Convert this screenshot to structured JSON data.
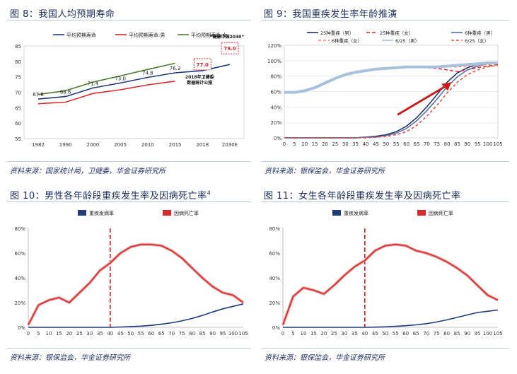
{
  "fig8": {
    "title": "图 8：我国人均预期寿命",
    "source": "资料来源：国家统计局，卫健委，华金证券研究所",
    "chart_data": {
      "type": "line",
      "categories": [
        "1982",
        "1990",
        "2000",
        "2005",
        "2010",
        "2015",
        "2018",
        "2030E"
      ],
      "ylim": [
        55,
        85
      ],
      "yticks": [
        "55",
        "60",
        "65",
        "70",
        "75",
        "80",
        "85"
      ],
      "series": [
        {
          "name": "平均预期寿命",
          "color": "#1f3a7a",
          "values": [
            67.8,
            68.6,
            71.4,
            73.0,
            74.8,
            76.3,
            77.0,
            79.0
          ]
        },
        {
          "name": "平均预期寿命:男",
          "color": "#d42a2a",
          "values": [
            66.3,
            66.8,
            69.6,
            70.8,
            72.4,
            73.6,
            null,
            null
          ]
        },
        {
          "name": "平均预期寿命:女",
          "color": "#4e7a2e",
          "values": [
            69.3,
            70.5,
            73.3,
            75.3,
            77.4,
            79.4,
            null,
            null
          ]
        }
      ],
      "labels": [
        {
          "idx": 0,
          "text": "67.8"
        },
        {
          "idx": 1,
          "text": "68.6"
        },
        {
          "idx": 2,
          "text": "71.4"
        },
        {
          "idx": 3,
          "text": "73.0"
        },
        {
          "idx": 4,
          "text": "74.8"
        },
        {
          "idx": 5,
          "text": "76.3"
        }
      ],
      "boxed_labels": [
        {
          "idx": 6,
          "value": 77.0,
          "text": "77.0"
        },
        {
          "idx": 7,
          "value": 79.0,
          "text": "79.0"
        }
      ],
      "annotations": [
        "“健康中国2030”",
        "2018年卫健委\n数据统计公报"
      ]
    }
  },
  "fig9": {
    "title": "图 9：我国重疾发生率年龄推演",
    "source": "资料来源：银保监会，华金证券研究所",
    "chart_data": {
      "type": "line",
      "categories": [
        "0",
        "5",
        "10",
        "15",
        "20",
        "25",
        "30",
        "35",
        "40",
        "45",
        "50",
        "55",
        "60",
        "65",
        "70",
        "75",
        "80",
        "85",
        "90",
        "95",
        "100",
        "105"
      ],
      "ylim": [
        0,
        120
      ],
      "yticks": [
        "0%",
        "20%",
        "40%",
        "60%",
        "80%",
        "100%",
        "120%"
      ],
      "series": [
        {
          "name": "25种重疾（男）",
          "color": "#1a2b5e",
          "dash": "",
          "values": [
            0,
            0,
            0,
            0,
            0,
            0,
            0,
            0,
            1,
            2,
            4,
            8,
            15,
            26,
            40,
            56,
            72,
            84,
            91,
            95,
            97,
            98
          ]
        },
        {
          "name": "25种重疾（女）",
          "color": "#d42a2a",
          "dash": "5,3",
          "values": [
            58,
            58,
            60,
            65,
            70,
            76,
            82,
            85,
            87,
            89,
            90,
            91,
            92,
            92,
            91,
            90,
            88,
            86,
            88,
            91,
            93,
            95
          ]
        },
        {
          "name": "6种重疾（男）",
          "color": "#4b6fa8",
          "dash": "",
          "values": [
            0,
            0,
            0,
            0,
            0,
            0,
            0,
            0,
            1,
            1,
            3,
            6,
            12,
            22,
            35,
            50,
            66,
            79,
            88,
            93,
            96,
            98
          ]
        },
        {
          "name": "6种重疾（女）",
          "color": "#ee7a5a",
          "dash": "4,3",
          "values": [
            59,
            59,
            61,
            66,
            71,
            77,
            82,
            85,
            87,
            89,
            90,
            91,
            92,
            92,
            92,
            92,
            92,
            92,
            93,
            94,
            95,
            96
          ]
        },
        {
          "name": "6/25（男）",
          "color": "#a9c0dd",
          "dash": "",
          "values": [
            59,
            59,
            61,
            65,
            71,
            77,
            82,
            85,
            87,
            89,
            90,
            91,
            92,
            92,
            92,
            92,
            93,
            94,
            95,
            96,
            97,
            97
          ]
        },
        {
          "name": "6/25（女）",
          "color": "#e84a3a",
          "dash": "4,3",
          "values": [
            0,
            0,
            0,
            0,
            0,
            0,
            0,
            0,
            0,
            1,
            2,
            4,
            8,
            16,
            28,
            42,
            58,
            72,
            82,
            88,
            92,
            94
          ]
        }
      ]
    }
  },
  "fig10": {
    "title": "图 10：男性各年龄段重疾发生率及因病死亡率",
    "title_sup": "4",
    "source": "资料来源：银保监会，华金证券研究所",
    "chart_data": {
      "type": "line",
      "categories": [
        "0",
        "5",
        "10",
        "15",
        "20",
        "25",
        "30",
        "35",
        "40",
        "45",
        "50",
        "55",
        "60",
        "65",
        "70",
        "75",
        "80",
        "85",
        "90",
        "95",
        "100",
        "105"
      ],
      "ylim": [
        0,
        80
      ],
      "yticks": [
        "0%",
        "20%",
        "40%",
        "60%",
        "80%"
      ],
      "vline_at": 40,
      "series": [
        {
          "name": "重疾发病率",
          "color": "#1f3a7a",
          "values": [
            0,
            0,
            0,
            0,
            0,
            0,
            0,
            0,
            0,
            0.3,
            0.6,
            1,
            1.6,
            2.5,
            3.7,
            5.2,
            7.2,
            9.6,
            12.4,
            15,
            17,
            19
          ]
        },
        {
          "name": "因病死亡率",
          "color": "#d42a2a",
          "values": [
            2,
            18,
            22,
            24,
            20,
            28,
            36,
            46,
            52,
            60,
            65,
            67,
            67,
            66,
            62,
            56,
            48,
            40,
            33,
            28,
            26,
            20
          ]
        }
      ]
    }
  },
  "fig11": {
    "title": "图 11：女生各年龄段重疾发生率及因病死亡率",
    "source": "资料来源：银保监会，华金证券研究所",
    "chart_data": {
      "type": "line",
      "categories": [
        "0",
        "5",
        "10",
        "15",
        "20",
        "25",
        "30",
        "35",
        "40",
        "45",
        "50",
        "55",
        "60",
        "65",
        "70",
        "75",
        "80",
        "85",
        "90",
        "95",
        "100",
        "105"
      ],
      "ylim": [
        0,
        80
      ],
      "yticks": [
        "0%",
        "20%",
        "40%",
        "60%",
        "80%"
      ],
      "vline_at": 40,
      "series": [
        {
          "name": "重疾发病率",
          "color": "#1f3a7a",
          "values": [
            0,
            0,
            0,
            0,
            0,
            0,
            0,
            0,
            0,
            0.2,
            0.4,
            0.8,
            1.3,
            2,
            3,
            4.3,
            6,
            8,
            10,
            12,
            13,
            14
          ]
        },
        {
          "name": "因病死亡率",
          "color": "#d42a2a",
          "values": [
            2,
            25,
            32,
            30,
            27,
            34,
            42,
            49,
            54,
            62,
            66,
            67,
            66,
            62,
            60,
            57,
            53,
            48,
            42,
            34,
            26,
            22
          ]
        }
      ]
    }
  }
}
